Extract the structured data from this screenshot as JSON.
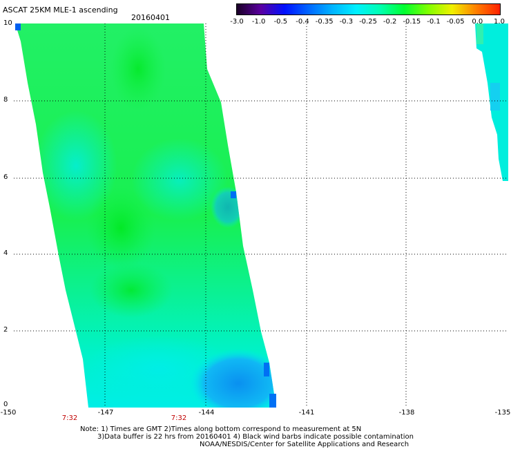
{
  "header": {
    "title": "ASCAT 25KM MLE-1 ascending",
    "date": "20160401"
  },
  "colorbar": {
    "ticks": [
      "-3.0",
      "-1.0",
      "-0.5",
      "-0.4",
      "-0.35",
      "-0.3",
      "-0.25",
      "-0.2",
      "-0.15",
      "-0.1",
      "-0.05",
      "0.0",
      "1.0"
    ],
    "colors": [
      "#1a0026",
      "#5a00a0",
      "#0010ff",
      "#0066ff",
      "#00b4ff",
      "#00f0ff",
      "#00ffb0",
      "#00ff30",
      "#80ff00",
      "#f0f000",
      "#ff8000",
      "#ff2000"
    ]
  },
  "axes": {
    "y_ticks": [
      "10",
      "8",
      "6",
      "4",
      "2",
      "0"
    ],
    "x_ticks": [
      "-150",
      "-147",
      "-144",
      "-141",
      "-138",
      "-135"
    ]
  },
  "times": [
    "7:32",
    "7:32"
  ],
  "notes": {
    "line1": "Note: 1) Times are GMT 2)Times along bottom correspond to measurement at 5N",
    "line2": "3)Data buffer is 22 hrs from 20160401 4) Black wind barbs indicate possible contamination",
    "line3": "NOAA/NESDIS/Center for Satellite Applications and Research"
  },
  "map_colors": {
    "green": "#1cf44c",
    "cyan": "#00f2d8",
    "blue": "#0aa6f2"
  }
}
